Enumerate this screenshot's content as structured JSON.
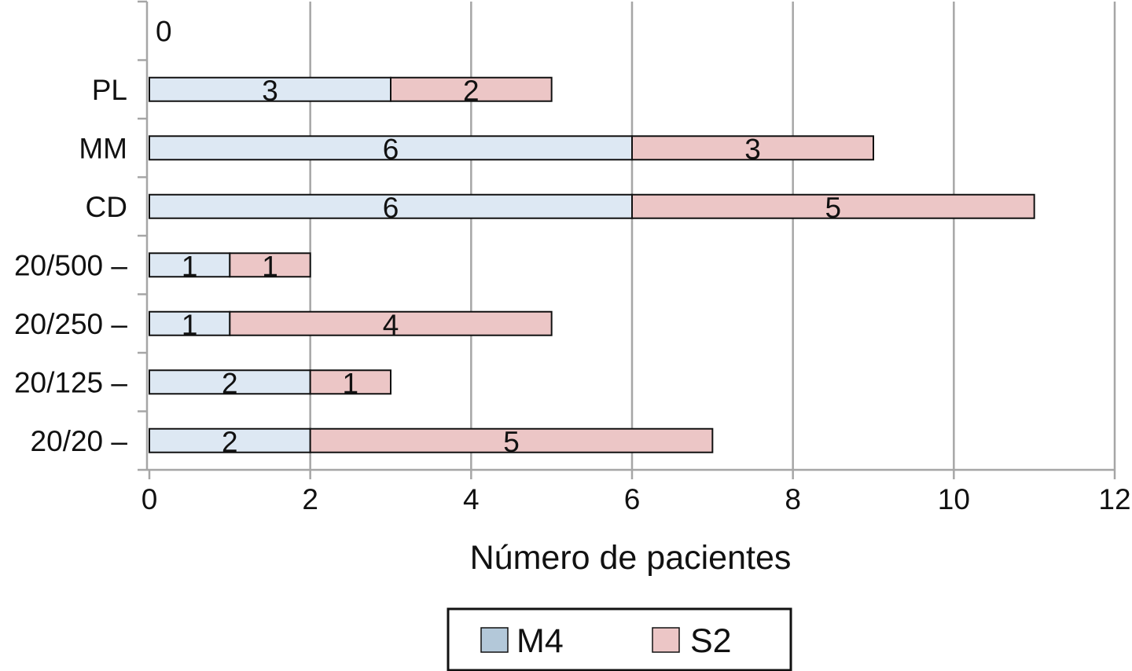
{
  "chart_data": {
    "type": "bar",
    "orientation": "horizontal",
    "stacked": true,
    "categories": [
      "0",
      "PL",
      "MM",
      "CD",
      "20/500 –",
      "20/250 –",
      "20/125 –",
      "20/20 –"
    ],
    "series": [
      {
        "name": "M4",
        "color": "#dde8f3",
        "legend_color": "#b3c8d9",
        "values": [
          0,
          3,
          6,
          6,
          1,
          1,
          2,
          2
        ]
      },
      {
        "name": "S2",
        "color": "#ecc6c6",
        "legend_color": "#ecc6c6",
        "values": [
          0,
          2,
          3,
          5,
          1,
          4,
          1,
          5
        ]
      }
    ],
    "xlabel": "Número de pacientes",
    "ylabel": "",
    "xlim": [
      0,
      12
    ],
    "xticks": [
      0,
      2,
      4,
      6,
      8,
      10,
      12
    ],
    "grid": "vertical",
    "legend": "bottom-center"
  }
}
